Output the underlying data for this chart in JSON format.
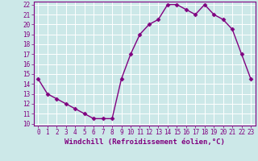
{
  "x": [
    0,
    1,
    2,
    3,
    4,
    5,
    6,
    7,
    8,
    9,
    10,
    11,
    12,
    13,
    14,
    15,
    16,
    17,
    18,
    19,
    20,
    21,
    22,
    23
  ],
  "y": [
    14.5,
    13.0,
    12.5,
    12.0,
    11.5,
    11.0,
    10.5,
    10.5,
    10.5,
    14.5,
    17.0,
    19.0,
    20.0,
    20.5,
    22.0,
    22.0,
    21.5,
    21.0,
    22.0,
    21.0,
    20.5,
    19.5,
    17.0,
    14.5
  ],
  "line_color": "#800080",
  "marker": "D",
  "marker_size": 2.5,
  "bg_color": "#cce8e8",
  "grid_color": "#aacccc",
  "xlabel": "Windchill (Refroidissement éolien,°C)",
  "ylim": [
    10,
    22
  ],
  "xlim": [
    -0.5,
    23.5
  ],
  "yticks": [
    10,
    11,
    12,
    13,
    14,
    15,
    16,
    17,
    18,
    19,
    20,
    21,
    22
  ],
  "xticks": [
    0,
    1,
    2,
    3,
    4,
    5,
    6,
    7,
    8,
    9,
    10,
    11,
    12,
    13,
    14,
    15,
    16,
    17,
    18,
    19,
    20,
    21,
    22,
    23
  ],
  "tick_color": "#800080",
  "tick_fontsize": 5.5,
  "xlabel_fontsize": 6.5,
  "line_width": 1.0,
  "spine_color": "#800080"
}
